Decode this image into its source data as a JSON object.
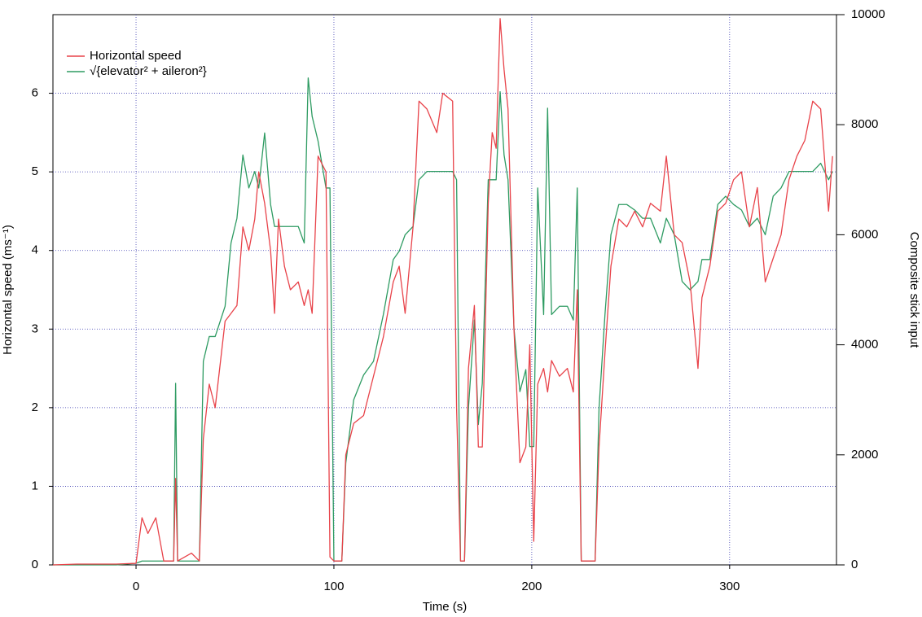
{
  "chart_data": {
    "type": "line",
    "x_label": "Time (s)",
    "y_label": "Horizontal speed (ms⁻¹)",
    "y2_label": "Composite stick input",
    "xlim": [
      -42,
      354
    ],
    "xticks": [
      0,
      100,
      200,
      300
    ],
    "ylim": [
      0,
      7
    ],
    "yticks": [
      0,
      1,
      2,
      3,
      4,
      5,
      6
    ],
    "y2lim": [
      0,
      10000
    ],
    "y2ticks": [
      0,
      2000,
      4000,
      6000,
      8000,
      10000
    ],
    "grid": true,
    "legend": "upper left",
    "x": [
      -42,
      -30,
      -10,
      0,
      3,
      6,
      10,
      14,
      19,
      20,
      21,
      28,
      32,
      34,
      37,
      40,
      45,
      48,
      51,
      54,
      57,
      60,
      62,
      65,
      68,
      70,
      72,
      75,
      78,
      82,
      85,
      87,
      89,
      92,
      96,
      98,
      100,
      104,
      106,
      110,
      115,
      120,
      125,
      130,
      133,
      136,
      140,
      143,
      147,
      152,
      155,
      160,
      162,
      164,
      166,
      168,
      171,
      173,
      175,
      178,
      180,
      182,
      184,
      186,
      188,
      191,
      194,
      197,
      199,
      201,
      203,
      206,
      208,
      210,
      214,
      218,
      221,
      223,
      225,
      232,
      234,
      237,
      240,
      244,
      248,
      252,
      256,
      260,
      265,
      268,
      272,
      276,
      280,
      284,
      286,
      290,
      294,
      298,
      302,
      306,
      310,
      314,
      318,
      322,
      326,
      330,
      334,
      338,
      342,
      346,
      350,
      352
    ],
    "series": [
      {
        "name": "Horizontal speed",
        "color": "#e8434a",
        "axis": "y",
        "values": [
          0,
          0.01,
          0.01,
          0.02,
          0.6,
          0.4,
          0.6,
          0.05,
          0.05,
          1.1,
          0.05,
          0.15,
          0.05,
          1.6,
          2.3,
          2.0,
          3.1,
          3.2,
          3.3,
          4.3,
          4.0,
          4.4,
          5.0,
          4.6,
          4.0,
          3.2,
          4.4,
          3.8,
          3.5,
          3.6,
          3.3,
          3.5,
          3.2,
          5.2,
          5.0,
          0.1,
          0.05,
          0.05,
          1.4,
          1.8,
          1.9,
          2.4,
          2.9,
          3.6,
          3.8,
          3.2,
          4.3,
          5.9,
          5.8,
          5.5,
          6.0,
          5.9,
          2.0,
          0.05,
          0.05,
          2.5,
          3.3,
          1.5,
          1.5,
          4.6,
          5.5,
          5.3,
          6.95,
          6.3,
          5.8,
          3.0,
          1.3,
          1.5,
          2.8,
          0.3,
          2.3,
          2.5,
          2.2,
          2.6,
          2.4,
          2.5,
          2.2,
          3.5,
          0.05,
          0.05,
          1.5,
          2.7,
          3.8,
          4.4,
          4.3,
          4.5,
          4.3,
          4.6,
          4.5,
          5.2,
          4.2,
          4.1,
          3.6,
          2.5,
          3.4,
          3.8,
          4.5,
          4.6,
          4.9,
          5.0,
          4.3,
          4.8,
          3.6,
          3.9,
          4.2,
          4.9,
          5.2,
          5.4,
          5.9,
          5.8,
          4.5,
          5.2
        ]
      },
      {
        "name": "√{elevator² + aileron²}",
        "color": "#2e9b62",
        "axis": "y2",
        "values": [
          0,
          0,
          0,
          30,
          70,
          70,
          70,
          70,
          70,
          3300,
          70,
          70,
          70,
          3700,
          4150,
          4150,
          4700,
          5850,
          6300,
          7450,
          6850,
          7150,
          6850,
          7850,
          6550,
          6150,
          6150,
          6150,
          6150,
          6150,
          5850,
          8850,
          8150,
          7700,
          6850,
          6850,
          70,
          70,
          1850,
          3000,
          3450,
          3700,
          4550,
          5550,
          5700,
          6000,
          6150,
          7000,
          7150,
          7150,
          7150,
          7150,
          7000,
          70,
          70,
          2850,
          4450,
          2550,
          3300,
          7000,
          7000,
          7000,
          8600,
          7450,
          7000,
          4300,
          3150,
          3550,
          2150,
          2150,
          6850,
          4550,
          8300,
          4550,
          4700,
          4700,
          4450,
          6850,
          70,
          70,
          2850,
          4550,
          6000,
          6550,
          6550,
          6450,
          6300,
          6300,
          5850,
          6300,
          6000,
          5150,
          5000,
          5150,
          5550,
          5550,
          6550,
          6700,
          6550,
          6450,
          6150,
          6300,
          6000,
          6700,
          6850,
          7150,
          7150,
          7150,
          7150,
          7300,
          7000,
          7150
        ]
      }
    ]
  }
}
